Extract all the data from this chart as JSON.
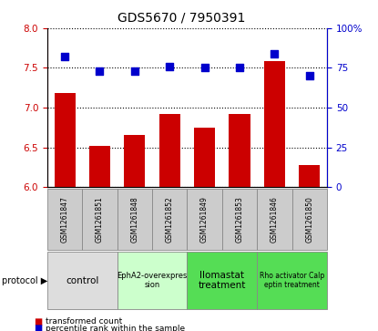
{
  "title": "GDS5670 / 7950391",
  "samples": [
    "GSM1261847",
    "GSM1261851",
    "GSM1261848",
    "GSM1261852",
    "GSM1261849",
    "GSM1261853",
    "GSM1261846",
    "GSM1261850"
  ],
  "transformed_counts": [
    7.18,
    6.52,
    6.65,
    6.92,
    6.75,
    6.92,
    7.58,
    6.28
  ],
  "percentile_ranks": [
    82,
    73,
    73,
    76,
    75,
    75,
    84,
    70
  ],
  "ylim_left": [
    6,
    8
  ],
  "ylim_right": [
    0,
    100
  ],
  "yticks_left": [
    6,
    6.5,
    7,
    7.5,
    8
  ],
  "yticks_right": [
    0,
    25,
    50,
    75,
    100
  ],
  "bar_color": "#cc0000",
  "dot_color": "#0000cc",
  "sample_bg": "#cccccc",
  "bar_width": 0.6,
  "dot_size": 30,
  "prot_groups": [
    {
      "label": "control",
      "start": 0,
      "end": 1,
      "color": "#dddddd",
      "fontsize": 7.5
    },
    {
      "label": "EphA2-overexpres\nsion",
      "start": 2,
      "end": 3,
      "color": "#ccffcc",
      "fontsize": 6.0
    },
    {
      "label": "Ilomastat\ntreatment",
      "start": 4,
      "end": 5,
      "color": "#55dd55",
      "fontsize": 7.5
    },
    {
      "label": "Rho activator Calp\neptin treatment",
      "start": 6,
      "end": 7,
      "color": "#55dd55",
      "fontsize": 5.5
    }
  ]
}
